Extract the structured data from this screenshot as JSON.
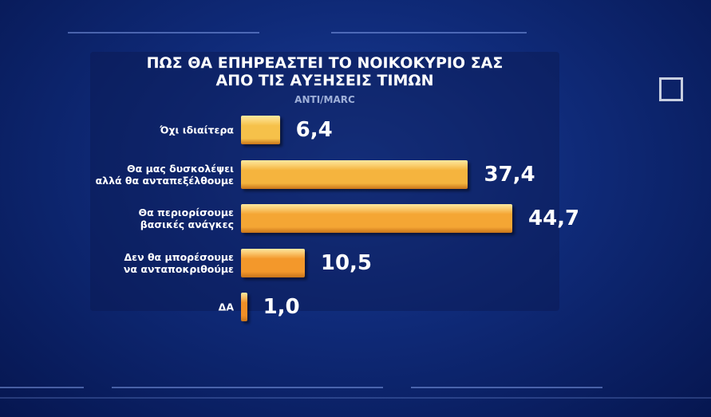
{
  "chart_data": {
    "type": "bar",
    "orientation": "horizontal",
    "title": "ΠΩΣ ΘΑ ΕΠΗΡΕΑΣΤΕΙ ΤΟ ΝΟΙΚΟΚΥΡΙΟ ΣΑΣ\nΑΠΟ ΤΙΣ ΑΥΞΗΣΕΙΣ ΤΙΜΩΝ",
    "subtitle": "ANTI/MARC",
    "categories": [
      "Όχι ιδιαίτερα",
      "Θα μας δυσκολέψει\nαλλά θα ανταπεξέλθουμε",
      "Θα περιορίσουμε\nβασικές ανάγκες",
      "Δεν θα μπορέσουμε\nνα ανταποκριθούμε",
      "ΔΑ"
    ],
    "values": [
      6.4,
      37.4,
      44.7,
      10.5,
      1.0
    ],
    "value_labels": [
      "6,4",
      "37,4",
      "44,7",
      "10,5",
      "1,0"
    ],
    "colors": [
      "#f6c14a",
      "#f5b43e",
      "#f4a634",
      "#f3982b",
      "#f28f27"
    ]
  }
}
